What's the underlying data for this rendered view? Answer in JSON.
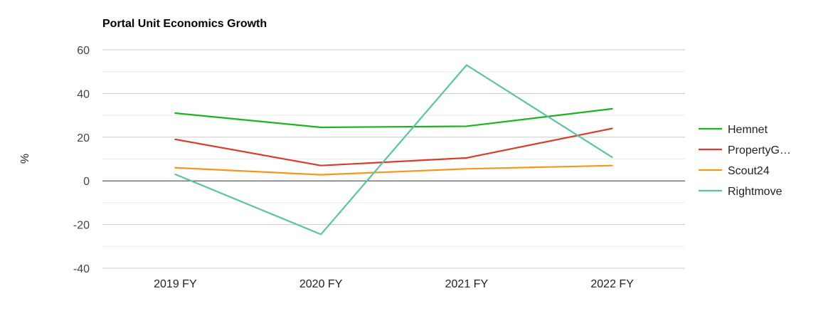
{
  "chart_data": {
    "type": "line",
    "title": "Portal Unit Economics Growth",
    "xlabel": "",
    "ylabel": "%",
    "categories": [
      "2019 FY",
      "2020 FY",
      "2021 FY",
      "2022 FY"
    ],
    "ylim": [
      -40,
      60
    ],
    "yticks": [
      "60",
      "40",
      "20",
      "0",
      "-20",
      "-40"
    ],
    "grid": true,
    "legend_position": "right",
    "series": [
      {
        "name": "Hemnet",
        "legend_label": "Hemnet",
        "color": "#1db31d",
        "values": [
          31,
          24.5,
          25,
          33
        ]
      },
      {
        "name": "PropertyGuru",
        "legend_label": "PropertyG…",
        "color": "#d93c2e",
        "values": [
          19,
          7,
          10.5,
          24
        ]
      },
      {
        "name": "Scout24",
        "legend_label": "Scout24",
        "color": "#f7961e",
        "values": [
          6,
          2.8,
          5.5,
          7
        ]
      },
      {
        "name": "Rightmove",
        "legend_label": "Rightmove",
        "color": "#5bc4a4",
        "values": [
          3,
          -24.5,
          53,
          10.8
        ]
      }
    ]
  }
}
